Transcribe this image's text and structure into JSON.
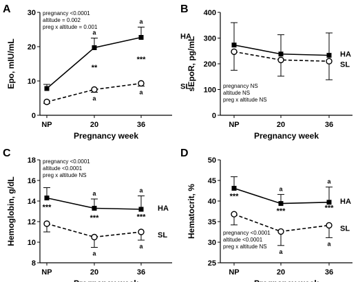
{
  "chart_data": [
    {
      "panel": "A",
      "type": "line",
      "categories": [
        "NP",
        "20",
        "36"
      ],
      "xlabel": "Pregnancy week",
      "ylabel": "Epo, mIU/mL",
      "ylim": [
        0,
        30
      ],
      "yticks": [
        0,
        10,
        20,
        30
      ],
      "stats": [
        "pregnancy <0.0001",
        "altitude = 0.002",
        "preg x altitude = 0.001"
      ],
      "series": [
        {
          "name": "HA",
          "values": [
            7.8,
            19.7,
            22.7
          ],
          "err": [
            1.2,
            2.8,
            3.0
          ],
          "marker": "square",
          "dash": false
        },
        {
          "name": "SL",
          "values": [
            3.9,
            7.5,
            9.3
          ],
          "err": [
            0.4,
            0.8,
            0.8
          ],
          "marker": "circle",
          "dash": true
        }
      ],
      "upper_labels": [
        "",
        "a",
        "a"
      ],
      "lower_labels": [
        "",
        "a",
        "a"
      ],
      "significance": [
        "",
        "**",
        "***"
      ]
    },
    {
      "panel": "B",
      "type": "line",
      "categories": [
        "NP",
        "20",
        "36"
      ],
      "xlabel": "Pregnancy week",
      "ylabel": "sEpoR, pg/mL",
      "ylim": [
        0,
        400
      ],
      "yticks": [
        0,
        100,
        200,
        300,
        400
      ],
      "stats": [
        "pregnancy NS",
        "altitude NS",
        "preg x altitude NS"
      ],
      "series": [
        {
          "name": "HA",
          "values": [
            273,
            238,
            233
          ],
          "err": [
            87,
            75,
            87
          ],
          "marker": "square",
          "dash": false
        },
        {
          "name": "SL",
          "values": [
            247,
            215,
            210
          ],
          "err": [
            72,
            63,
            72
          ],
          "marker": "circle",
          "dash": true
        }
      ],
      "upper_labels": [
        "",
        "",
        ""
      ],
      "lower_labels": [
        "",
        "",
        ""
      ],
      "significance": [
        "",
        "",
        ""
      ]
    },
    {
      "panel": "C",
      "type": "line",
      "categories": [
        "NP",
        "20",
        "36"
      ],
      "xlabel": "Pregnancy week",
      "ylabel": "Hemoglobin, g/dL",
      "ylim": [
        8,
        18
      ],
      "yticks": [
        8,
        10,
        12,
        14,
        16,
        18
      ],
      "stats": [
        "pregnancy <0.0001",
        "altitude <0.0001",
        "preg x altitude NS"
      ],
      "series": [
        {
          "name": "HA",
          "values": [
            14.3,
            13.3,
            13.2
          ],
          "err": [
            1.0,
            0.9,
            1.3
          ],
          "marker": "square",
          "dash": false
        },
        {
          "name": "SL",
          "values": [
            11.8,
            10.5,
            11.0
          ],
          "err": [
            0.8,
            1.0,
            0.8
          ],
          "marker": "circle",
          "dash": true
        }
      ],
      "upper_labels": [
        "",
        "a",
        "a"
      ],
      "lower_labels": [
        "",
        "a",
        "a"
      ],
      "significance": [
        "***",
        "***",
        "***"
      ]
    },
    {
      "panel": "D",
      "type": "line",
      "categories": [
        "NP",
        "20",
        "36"
      ],
      "xlabel": "Pregnancy week",
      "ylabel": "Hematocrit, %",
      "ylim": [
        25,
        50
      ],
      "yticks": [
        25,
        30,
        35,
        40,
        45,
        50
      ],
      "stats": [
        "pregnancy <0.0001",
        "altitude <0.0001",
        "preg x altitude NS"
      ],
      "series": [
        {
          "name": "HA",
          "values": [
            43.1,
            39.4,
            39.7
          ],
          "err": [
            2.8,
            2.2,
            3.7
          ],
          "marker": "square",
          "dash": false
        },
        {
          "name": "SL",
          "values": [
            36.8,
            32.6,
            34.1
          ],
          "err": [
            2.6,
            3.4,
            3.0
          ],
          "marker": "circle",
          "dash": true
        }
      ],
      "upper_labels": [
        "",
        "a",
        "a"
      ],
      "lower_labels": [
        "",
        "a",
        "a"
      ],
      "significance": [
        "***",
        "***",
        "***"
      ]
    }
  ]
}
